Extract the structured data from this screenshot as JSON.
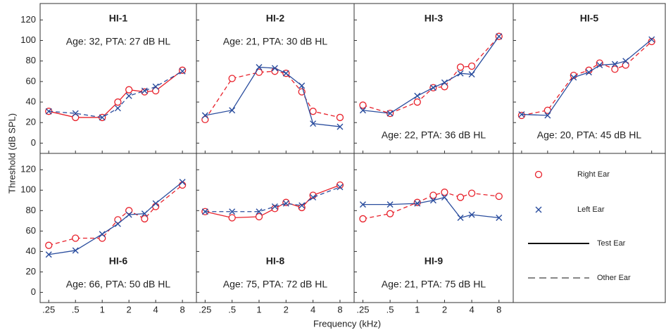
{
  "axes": {
    "xlabel": "Frequency (kHz)",
    "ylabel": "Threshold (dB SPL)",
    "xscale": "log",
    "xlim": [
      0.2,
      11.5
    ],
    "ylim": [
      -10,
      136
    ],
    "xticks": [
      {
        "value": 0.25,
        "label": ".25"
      },
      {
        "value": 0.5,
        "label": ".5"
      },
      1,
      2,
      4,
      8
    ],
    "yticks": [
      0,
      20,
      40,
      60,
      80,
      100,
      120
    ]
  },
  "legend": {
    "test": "Test Ear",
    "other": "Other Ear"
  },
  "chart_data": [
    {
      "type": "line",
      "title": "HI-1",
      "annotation": "Age: 32, PTA: 27 dB HL",
      "x": [
        0.25,
        0.5,
        1,
        1.5,
        2,
        3,
        4,
        8
      ],
      "series": [
        {
          "name": "Right Ear",
          "color": "#e8202a",
          "marker": "o",
          "line_style": "solid",
          "values": [
            31,
            25,
            25,
            40,
            52,
            50,
            51,
            71
          ]
        },
        {
          "name": "Left Ear",
          "color": "#2a4d9e",
          "marker": "x",
          "line_style": "dashed",
          "values": [
            31,
            29,
            25,
            34,
            46,
            51,
            55,
            70
          ]
        }
      ]
    },
    {
      "type": "line",
      "title": "HI-2",
      "annotation": "Age: 21, PTA: 30 dB HL",
      "x": [
        0.25,
        0.5,
        1,
        1.5,
        2,
        3,
        4,
        8
      ],
      "series": [
        {
          "name": "Right Ear",
          "color": "#e8202a",
          "marker": "o",
          "line_style": "dashed",
          "values": [
            23,
            63,
            69,
            70,
            68,
            50,
            31,
            25
          ]
        },
        {
          "name": "Left Ear",
          "color": "#2a4d9e",
          "marker": "x",
          "line_style": "solid",
          "values": [
            27,
            32,
            74,
            73,
            68,
            56,
            19,
            16
          ]
        }
      ]
    },
    {
      "type": "line",
      "title": "HI-3",
      "annotation": "Age: 22, PTA: 36 dB HL",
      "x": [
        0.25,
        0.5,
        1,
        1.5,
        2,
        3,
        4,
        8
      ],
      "series": [
        {
          "name": "Right Ear",
          "color": "#e8202a",
          "marker": "o",
          "line_style": "dashed",
          "values": [
            37,
            29,
            40,
            54,
            55,
            74,
            75,
            104
          ]
        },
        {
          "name": "Left Ear",
          "color": "#2a4d9e",
          "marker": "x",
          "line_style": "solid",
          "values": [
            32,
            29,
            46,
            54,
            59,
            68,
            67,
            104
          ]
        }
      ]
    },
    {
      "type": "line",
      "title": "HI-5",
      "annotation": "Age: 20, PTA: 45 dB HL",
      "x": [
        0.25,
        0.5,
        1,
        1.5,
        2,
        3,
        4,
        8
      ],
      "series": [
        {
          "name": "Right Ear",
          "color": "#e8202a",
          "marker": "o",
          "line_style": "dashed",
          "values": [
            27,
            32,
            66,
            71,
            78,
            72,
            76,
            99
          ]
        },
        {
          "name": "Left Ear",
          "color": "#2a4d9e",
          "marker": "x",
          "line_style": "solid",
          "values": [
            28,
            27,
            64,
            69,
            76,
            77,
            80,
            101
          ]
        }
      ]
    },
    {
      "type": "line",
      "title": "HI-6",
      "annotation": "Age: 66, PTA: 50 dB HL",
      "x": [
        0.25,
        0.5,
        1,
        1.5,
        2,
        3,
        4,
        8
      ],
      "series": [
        {
          "name": "Right Ear",
          "color": "#e8202a",
          "marker": "o",
          "line_style": "dashed",
          "values": [
            46,
            53,
            53,
            71,
            80,
            72,
            84,
            105
          ]
        },
        {
          "name": "Left Ear",
          "color": "#2a4d9e",
          "marker": "x",
          "line_style": "solid",
          "values": [
            37,
            41,
            57,
            67,
            76,
            77,
            87,
            108
          ]
        }
      ]
    },
    {
      "type": "line",
      "title": "HI-8",
      "annotation": "Age: 75, PTA: 72 dB HL",
      "x": [
        0.25,
        0.5,
        1,
        1.5,
        2,
        3,
        4,
        8
      ],
      "series": [
        {
          "name": "Right Ear",
          "color": "#e8202a",
          "marker": "o",
          "line_style": "solid",
          "values": [
            79,
            73,
            74,
            82,
            88,
            83,
            95,
            105
          ]
        },
        {
          "name": "Left Ear",
          "color": "#2a4d9e",
          "marker": "x",
          "line_style": "dashed",
          "values": [
            79,
            79,
            79,
            84,
            87,
            85,
            93,
            103
          ]
        }
      ]
    },
    {
      "type": "line",
      "title": "HI-9",
      "annotation": "Age: 21, PTA: 75 dB HL",
      "x": [
        0.25,
        0.5,
        1,
        1.5,
        2,
        3,
        4,
        8
      ],
      "series": [
        {
          "name": "Right Ear",
          "color": "#e8202a",
          "marker": "o",
          "line_style": "dashed",
          "values": [
            72,
            77,
            88,
            95,
            98,
            93,
            97,
            94
          ]
        },
        {
          "name": "Left Ear",
          "color": "#2a4d9e",
          "marker": "x",
          "line_style": "solid",
          "values": [
            86,
            86,
            87,
            90,
            93,
            73,
            76,
            73
          ]
        }
      ]
    }
  ]
}
